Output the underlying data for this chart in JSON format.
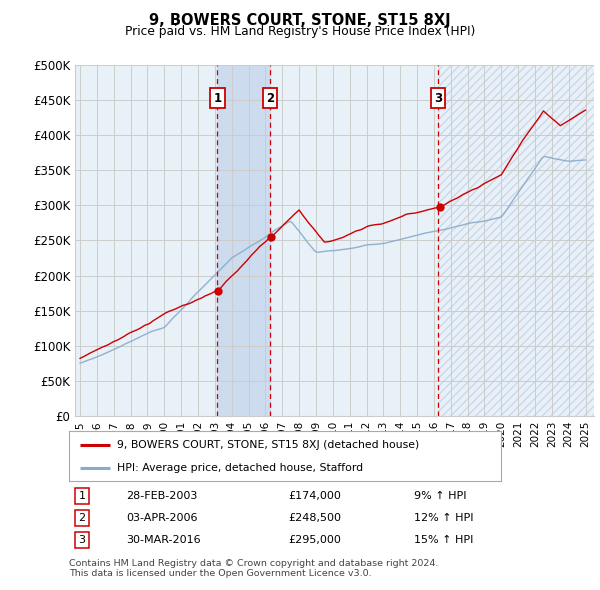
{
  "title": "9, BOWERS COURT, STONE, ST15 8XJ",
  "subtitle": "Price paid vs. HM Land Registry's House Price Index (HPI)",
  "ylim": [
    0,
    500000
  ],
  "yticks": [
    0,
    50000,
    100000,
    150000,
    200000,
    250000,
    300000,
    350000,
    400000,
    450000,
    500000
  ],
  "ytick_labels": [
    "£0",
    "£50K",
    "£100K",
    "£150K",
    "£200K",
    "£250K",
    "£300K",
    "£350K",
    "£400K",
    "£450K",
    "£500K"
  ],
  "xlim_start": 1994.7,
  "xlim_end": 2025.5,
  "transactions": [
    {
      "num": 1,
      "date": "28-FEB-2003",
      "price": 174000,
      "pct": "9%",
      "direction": "↑",
      "year_dec": 2003.15
    },
    {
      "num": 2,
      "date": "03-APR-2006",
      "price": 248500,
      "pct": "12%",
      "direction": "↑",
      "year_dec": 2006.28
    },
    {
      "num": 3,
      "date": "30-MAR-2016",
      "price": 295000,
      "pct": "15%",
      "direction": "↑",
      "year_dec": 2016.25
    }
  ],
  "legend_property": "9, BOWERS COURT, STONE, ST15 8XJ (detached house)",
  "legend_hpi": "HPI: Average price, detached house, Stafford",
  "footnote1": "Contains HM Land Registry data © Crown copyright and database right 2024.",
  "footnote2": "This data is licensed under the Open Government Licence v3.0.",
  "red_color": "#cc0000",
  "blue_color": "#88aacc",
  "grid_color": "#cccccc",
  "bg_color": "#ffffff",
  "plot_bg": "#e8f0f8",
  "shading_between": "#ccdcee",
  "hatch_color": "#ccd8e8"
}
